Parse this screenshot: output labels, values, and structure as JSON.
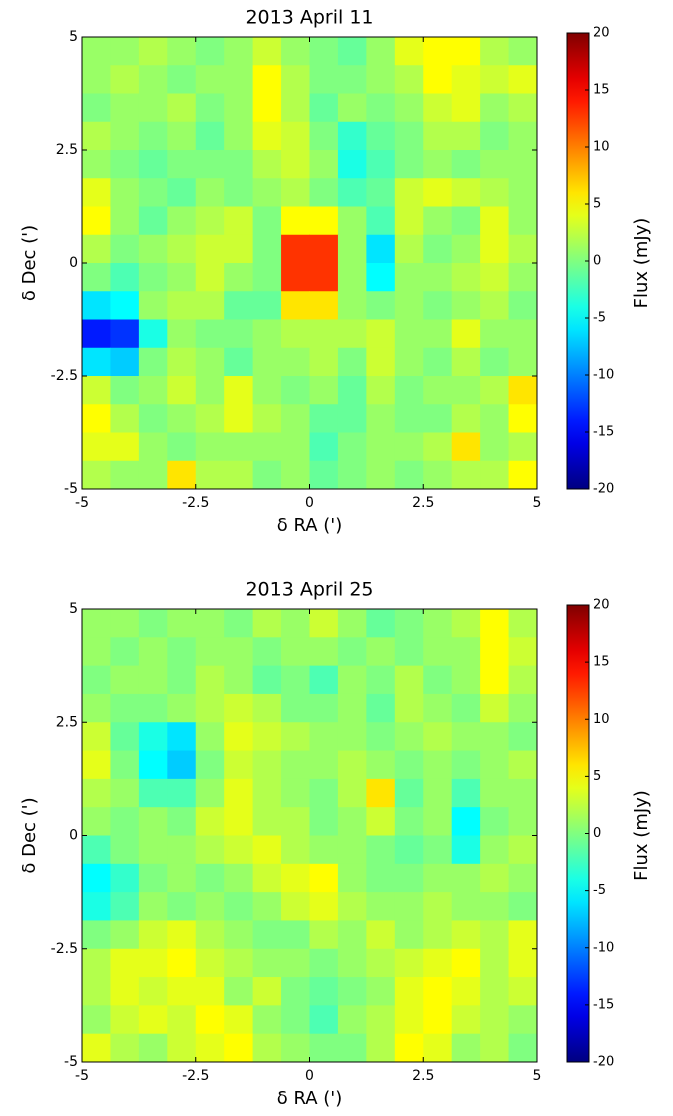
{
  "chart_data": [
    {
      "type": "heatmap",
      "title": "2013 April 11",
      "xlabel": "δ RA (')",
      "ylabel": "δ Dec (')",
      "colorbar_label": "Flux (mJy)",
      "colormap": "jet",
      "xlim": [
        -5,
        5
      ],
      "ylim": [
        -5,
        5
      ],
      "xticks": [
        -5,
        -2.5,
        0,
        2.5,
        5
      ],
      "yticks": [
        -5,
        -2.5,
        0,
        2.5,
        5
      ],
      "clim": [
        -20,
        20
      ],
      "cticks": [
        -20,
        -15,
        -10,
        -5,
        0,
        5,
        10,
        15,
        20
      ],
      "z": [
        [
          1,
          1,
          2,
          1,
          0,
          1,
          3,
          1,
          0,
          -1,
          1,
          4,
          5,
          5,
          2,
          1
        ],
        [
          1,
          2,
          1,
          0,
          1,
          1,
          5,
          2,
          0,
          0,
          1,
          2,
          5,
          4,
          3,
          4
        ],
        [
          0,
          1,
          1,
          2,
          0,
          1,
          5,
          2,
          -1,
          1,
          0,
          1,
          3,
          4,
          1,
          2
        ],
        [
          2,
          1,
          0,
          1,
          -1,
          1,
          4,
          3,
          0,
          -3,
          -1,
          0,
          2,
          2,
          0,
          1
        ],
        [
          1,
          0,
          -1,
          0,
          0,
          0,
          2,
          3,
          1,
          -4,
          -2,
          0,
          1,
          0,
          1,
          1
        ],
        [
          4,
          1,
          0,
          -1,
          1,
          0,
          1,
          2,
          0,
          -2,
          -1,
          3,
          4,
          3,
          2,
          1
        ],
        [
          5,
          1,
          -1,
          1,
          2,
          3,
          0,
          5,
          5,
          1,
          -2,
          3,
          1,
          0,
          4,
          1
        ],
        [
          2,
          0,
          1,
          2,
          3,
          3,
          0,
          13,
          13,
          1,
          -6,
          2,
          0,
          1,
          4,
          2
        ],
        [
          0,
          -2,
          0,
          1,
          3,
          1,
          0,
          13,
          13,
          1,
          -5,
          1,
          1,
          2,
          3,
          1
        ],
        [
          -6,
          -5,
          1,
          2,
          2,
          -1,
          -1,
          6,
          6,
          1,
          0,
          1,
          0,
          1,
          2,
          0
        ],
        [
          -14,
          -13,
          -4,
          1,
          0,
          0,
          1,
          2,
          2,
          2,
          3,
          1,
          1,
          4,
          1,
          1
        ],
        [
          -6,
          -7,
          0,
          2,
          1,
          -1,
          1,
          1,
          2,
          0,
          3,
          1,
          0,
          2,
          0,
          1
        ],
        [
          3,
          0,
          1,
          3,
          1,
          4,
          1,
          0,
          1,
          -1,
          2,
          0,
          1,
          1,
          2,
          6
        ],
        [
          5,
          2,
          0,
          1,
          2,
          4,
          2,
          1,
          -1,
          -1,
          1,
          0,
          0,
          2,
          1,
          5
        ],
        [
          4,
          4,
          1,
          0,
          1,
          1,
          1,
          1,
          -2,
          0,
          1,
          1,
          2,
          6,
          1,
          2
        ],
        [
          2,
          1,
          1,
          6,
          2,
          2,
          0,
          1,
          -1,
          0,
          1,
          0,
          1,
          2,
          2,
          5
        ]
      ]
    },
    {
      "type": "heatmap",
      "title": "2013 April 25",
      "xlabel": "δ RA (')",
      "ylabel": "δ Dec (')",
      "colorbar_label": "Flux (mJy)",
      "colormap": "jet",
      "xlim": [
        -5,
        5
      ],
      "ylim": [
        -5,
        5
      ],
      "xticks": [
        -5,
        -2.5,
        0,
        2.5,
        5
      ],
      "yticks": [
        -5,
        -2.5,
        0,
        2.5,
        5
      ],
      "clim": [
        -20,
        20
      ],
      "cticks": [
        -20,
        -15,
        -10,
        -5,
        0,
        5,
        10,
        15,
        20
      ],
      "z": [
        [
          1,
          1,
          0,
          1,
          1,
          0,
          2,
          1,
          3,
          1,
          -1,
          0,
          1,
          2,
          5,
          2
        ],
        [
          1,
          0,
          1,
          0,
          1,
          1,
          0,
          1,
          1,
          0,
          1,
          0,
          1,
          1,
          5,
          3
        ],
        [
          0,
          1,
          1,
          0,
          2,
          1,
          -1,
          0,
          -2,
          1,
          0,
          2,
          0,
          1,
          5,
          2
        ],
        [
          1,
          0,
          0,
          1,
          2,
          3,
          2,
          0,
          0,
          1,
          -1,
          2,
          1,
          0,
          3,
          1
        ],
        [
          3,
          -1,
          -4,
          -6,
          1,
          4,
          3,
          2,
          1,
          1,
          0,
          1,
          2,
          1,
          1,
          0
        ],
        [
          4,
          0,
          -5,
          -7,
          0,
          3,
          2,
          1,
          1,
          2,
          1,
          0,
          1,
          0,
          1,
          2
        ],
        [
          2,
          1,
          -2,
          -2,
          1,
          4,
          2,
          1,
          0,
          2,
          6,
          -1,
          1,
          -2,
          1,
          1
        ],
        [
          1,
          0,
          1,
          0,
          3,
          4,
          2,
          2,
          0,
          1,
          3,
          0,
          1,
          -5,
          0,
          1
        ],
        [
          -2,
          0,
          1,
          1,
          2,
          3,
          4,
          2,
          1,
          1,
          0,
          -1,
          0,
          -4,
          1,
          2
        ],
        [
          -5,
          -3,
          0,
          1,
          0,
          1,
          3,
          4,
          5,
          1,
          0,
          0,
          1,
          1,
          2,
          1
        ],
        [
          -4,
          -2,
          1,
          0,
          1,
          0,
          1,
          3,
          4,
          2,
          1,
          1,
          2,
          1,
          1,
          0
        ],
        [
          0,
          1,
          3,
          4,
          2,
          1,
          0,
          0,
          2,
          1,
          3,
          1,
          2,
          3,
          2,
          4
        ],
        [
          2,
          4,
          4,
          5,
          3,
          2,
          1,
          1,
          0,
          1,
          2,
          3,
          4,
          5,
          2,
          4
        ],
        [
          2,
          4,
          3,
          4,
          4,
          1,
          3,
          0,
          -1,
          0,
          1,
          4,
          5,
          4,
          2,
          3
        ],
        [
          1,
          3,
          4,
          3,
          5,
          4,
          1,
          0,
          -2,
          1,
          2,
          4,
          5,
          3,
          2,
          1
        ],
        [
          4,
          2,
          1,
          3,
          4,
          5,
          2,
          1,
          0,
          0,
          2,
          5,
          4,
          1,
          2,
          0
        ]
      ]
    }
  ]
}
